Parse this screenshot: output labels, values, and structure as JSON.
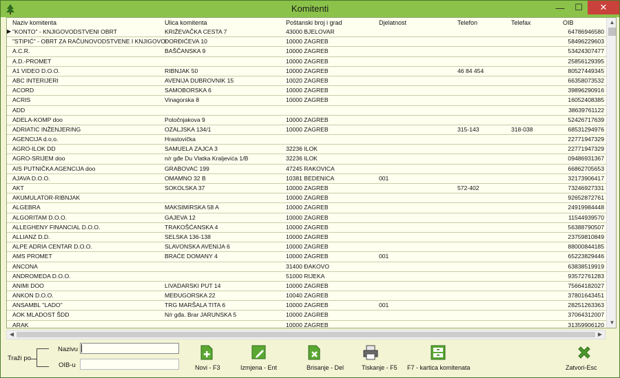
{
  "window": {
    "title": "Komitenti",
    "buttons": {
      "minimize": "—",
      "maximize": "☐",
      "close": "✕"
    }
  },
  "grid": {
    "columns": [
      "Naziv komitenta",
      "Ulica komitenta",
      "Poštanski broj i grad",
      "Djelatnost",
      "Telefon",
      "Telefax",
      "OIB"
    ],
    "current_row_marker": "▶",
    "rows": [
      {
        "naziv": "\"KONTO\" - KNJIGOVODSTVENI OBRT",
        "ulica": "KRIŽEVAČKA CESTA 7",
        "posta": "43000 BJELOVAR",
        "djelatnost": "",
        "telefon": "",
        "telefax": "",
        "oib": "64786946580"
      },
      {
        "naziv": "\"STIPIĆ\" - OBRT ZA  RAČUNOVODSTVENE  I KNJIGOVOD",
        "ulica": "ĐORĐIĆEVA 10",
        "posta": "10000  ZAGREB",
        "djelatnost": "",
        "telefon": "",
        "telefax": "",
        "oib": "58496229603"
      },
      {
        "naziv": "A.C.R.",
        "ulica": "BAŠČANSKA 9",
        "posta": "10000  ZAGREB",
        "djelatnost": "",
        "telefon": "",
        "telefax": "",
        "oib": "53424307477"
      },
      {
        "naziv": "A.D.-PROMET",
        "ulica": "",
        "posta": "10000  ZAGREB",
        "djelatnost": "",
        "telefon": "",
        "telefax": "",
        "oib": "25856129395"
      },
      {
        "naziv": "A1 VIDEO D.O.O.",
        "ulica": "RIBNJAK 50",
        "posta": "10000  ZAGREB",
        "djelatnost": "",
        "telefon": "46 84 454",
        "telefax": "",
        "oib": "80527449345"
      },
      {
        "naziv": "ABC INTERIJERI",
        "ulica": "AVENIJA DUBROVNIK 15",
        "posta": "10020 ZAGREB",
        "djelatnost": "",
        "telefon": "",
        "telefax": "",
        "oib": "66358073532"
      },
      {
        "naziv": "ACORD",
        "ulica": "SAMOBORSKA 6",
        "posta": "10000  ZAGREB",
        "djelatnost": "",
        "telefon": "",
        "telefax": "",
        "oib": "39896290916"
      },
      {
        "naziv": "ACRIS",
        "ulica": "Vinagorska 8",
        "posta": "10000  ZAGREB",
        "djelatnost": "",
        "telefon": "",
        "telefax": "",
        "oib": "16052408385"
      },
      {
        "naziv": "ADD",
        "ulica": "",
        "posta": "",
        "djelatnost": "",
        "telefon": "",
        "telefax": "",
        "oib": "38639761122"
      },
      {
        "naziv": "ADELA-KOMP doo",
        "ulica": "Potočnjakova 9",
        "posta": "10000  ZAGREB",
        "djelatnost": "",
        "telefon": "",
        "telefax": "",
        "oib": "52426717639"
      },
      {
        "naziv": "ADRIATIC INŽENJERING",
        "ulica": "OZALJSKA 134/1",
        "posta": "10000  ZAGREB",
        "djelatnost": "",
        "telefon": "315-143",
        "telefax": "318-038",
        "oib": "68531294976"
      },
      {
        "naziv": "AGENCIJA d.o.o.",
        "ulica": "Hrastovička",
        "posta": "",
        "djelatnost": "",
        "telefon": "",
        "telefax": "",
        "oib": "22771947329"
      },
      {
        "naziv": "AGRO-ILOK DD",
        "ulica": "SAMUELA ZAJCA 3",
        "posta": "32236 ILOK",
        "djelatnost": "",
        "telefon": "",
        "telefax": "",
        "oib": "22771947329"
      },
      {
        "naziv": "AGRO-SRIJEM doo",
        "ulica": "n/r gđe Du Vlatka Kraljevića 1/B",
        "posta": "32236 ILOK",
        "djelatnost": "",
        "telefon": "",
        "telefax": "",
        "oib": "09486931367"
      },
      {
        "naziv": "AIS PUTNIČKA AGENCIJA doo",
        "ulica": "GRABOVAC 199",
        "posta": "47245 RAKOVICA",
        "djelatnost": "",
        "telefon": "",
        "telefax": "",
        "oib": "66862705653"
      },
      {
        "naziv": "AJAVA D.O.O.",
        "ulica": "OMAMNO 32 B",
        "posta": "10381  BEDENICA",
        "djelatnost": "001",
        "telefon": "",
        "telefax": "",
        "oib": "32173906417"
      },
      {
        "naziv": "AKT",
        "ulica": "SOKOLSKA 37",
        "posta": "10000  ZAGREB",
        "djelatnost": "",
        "telefon": "572-402",
        "telefax": "",
        "oib": "73246927331"
      },
      {
        "naziv": "AKUMULATOR-RIBNJAK",
        "ulica": "",
        "posta": "10000  ZAGREB",
        "djelatnost": "",
        "telefon": "",
        "telefax": "",
        "oib": "92652872761"
      },
      {
        "naziv": "ALGEBRA",
        "ulica": "MAKSIMIRSKA 58 A",
        "posta": "10000  ZAGREB",
        "djelatnost": "",
        "telefon": "",
        "telefax": "",
        "oib": "24919984448"
      },
      {
        "naziv": "ALGORITAM D.O.O.",
        "ulica": "GAJEVA 12",
        "posta": "10000  ZAGREB",
        "djelatnost": "",
        "telefon": "",
        "telefax": "",
        "oib": "11544939570"
      },
      {
        "naziv": "ALLEGHENY FINANCIAL D.O.O.",
        "ulica": "TRAKOŠĆANSKA 4",
        "posta": "10000  ZAGREB",
        "djelatnost": "",
        "telefon": "",
        "telefax": "",
        "oib": "56388790507"
      },
      {
        "naziv": "ALLIANZ D.D.",
        "ulica": "SELSKA 136-138",
        "posta": "10000  ZAGREB",
        "djelatnost": "",
        "telefon": "",
        "telefax": "",
        "oib": "23759810849"
      },
      {
        "naziv": "ALPE ADRIA CENTAR D.O.O.",
        "ulica": "SLAVONSKA  AVENIJA 6",
        "posta": "10000  ZAGREB",
        "djelatnost": "",
        "telefon": "",
        "telefax": "",
        "oib": "88000844185"
      },
      {
        "naziv": "AMS PROMET",
        "ulica": "BRAĆE DOMANY 4",
        "posta": "10000  ZAGREB",
        "djelatnost": "001",
        "telefon": "",
        "telefax": "",
        "oib": "65223829446"
      },
      {
        "naziv": "ANCONA",
        "ulica": "",
        "posta": "31400 ĐAKOVO",
        "djelatnost": "",
        "telefon": "",
        "telefax": "",
        "oib": "63838519919"
      },
      {
        "naziv": "ANDROMEDA D.O.O.",
        "ulica": "",
        "posta": "51000  RIJEKA",
        "djelatnost": "",
        "telefon": "",
        "telefax": "",
        "oib": "93572761283"
      },
      {
        "naziv": "ANIMI DOO",
        "ulica": "LIVADARSKI PUT 14",
        "posta": "10000  ZAGREB",
        "djelatnost": "",
        "telefon": "",
        "telefax": "",
        "oib": "75664182027"
      },
      {
        "naziv": "ANKON D.O.O.",
        "ulica": "MEĐUGORSKA 22",
        "posta": "10040 ZAGREB",
        "djelatnost": "",
        "telefon": "",
        "telefax": "",
        "oib": "37801643451"
      },
      {
        "naziv": "ANSAMBL \"LADO\"",
        "ulica": "TRG MARŠALA TITA 6",
        "posta": "10000  ZAGREB",
        "djelatnost": "001",
        "telefon": "",
        "telefax": "",
        "oib": "28251263363"
      },
      {
        "naziv": "AOK  MLADOST  ŠDD",
        "ulica": "N/r gđa. Brar JARUNSKA 5",
        "posta": "10000  ZAGREB",
        "djelatnost": "",
        "telefon": "",
        "telefax": "",
        "oib": "37064312007"
      },
      {
        "naziv": "ARAK",
        "ulica": "",
        "posta": "10000  ZAGREB",
        "djelatnost": "",
        "telefon": "",
        "telefax": "",
        "oib": "31359906120"
      }
    ]
  },
  "search": {
    "group_label": "Traži po",
    "naziv_label": "Nazivu",
    "oib_label": "OIB-u",
    "naziv_value": "",
    "oib_value": ""
  },
  "toolbar": {
    "novi": "Novi - F3",
    "izmjena": "Izmjena - Ent",
    "brisanje": "Brisanje - Del",
    "tiskanje": "Tiskanje - F5",
    "kartica": "F7 - kartica komitenata",
    "zatvori": "Zatvori-Esc"
  },
  "colors": {
    "title_bar": "#8bc34a",
    "background": "#f2f4d4",
    "grid_background": "#fffff0",
    "icon_green": "#4c9a2a",
    "close_red": "#c9423b"
  },
  "icons": {
    "app": "app-tree-icon",
    "novi": "document-add-icon",
    "izmjena": "document-edit-icon",
    "brisanje": "document-delete-icon",
    "tiskanje": "printer-icon",
    "kartica": "card-cabinet-icon",
    "zatvori": "close-x-icon"
  }
}
